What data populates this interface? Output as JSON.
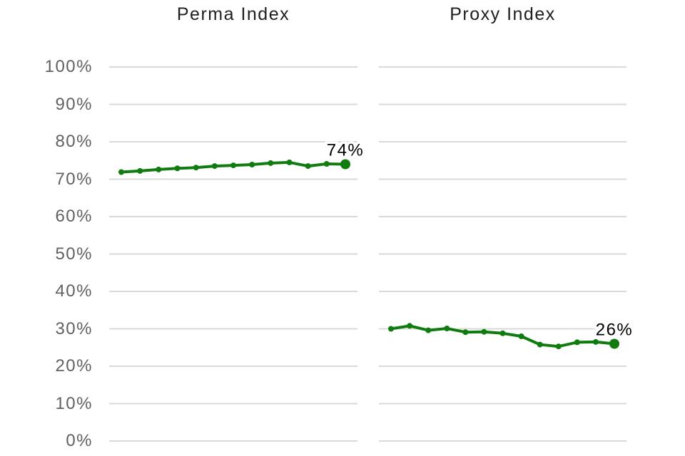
{
  "colors": {
    "line": "#107C10",
    "gridline": "#d9d9d9",
    "tick_label": "#616161",
    "title": "#1f1f1f",
    "end_label": "#000000",
    "background": "#ffffff"
  },
  "y_axis": {
    "tick_labels": [
      "100%",
      "90%",
      "80%",
      "70%",
      "60%",
      "50%",
      "40%",
      "30%",
      "20%",
      "10%",
      "0%"
    ]
  },
  "chart_data": [
    {
      "type": "line",
      "title": "Perma Index",
      "values": [
        71.9,
        72.2,
        72.6,
        72.9,
        73.1,
        73.5,
        73.7,
        73.9,
        74.3,
        74.5,
        73.5,
        74.1,
        74.0
      ],
      "end_label": "74%",
      "ylim": [
        0,
        100
      ],
      "y_tick_step": 10,
      "grid": true,
      "legend": "none",
      "xlabel": "",
      "ylabel": ""
    },
    {
      "type": "line",
      "title": "Proxy Index",
      "values": [
        30.0,
        30.8,
        29.6,
        30.1,
        29.1,
        29.2,
        28.8,
        28.0,
        25.8,
        25.3,
        26.4,
        26.5,
        26.0
      ],
      "end_label": "26%",
      "ylim": [
        0,
        100
      ],
      "y_tick_step": 10,
      "grid": true,
      "legend": "none",
      "xlabel": "",
      "ylabel": ""
    }
  ]
}
